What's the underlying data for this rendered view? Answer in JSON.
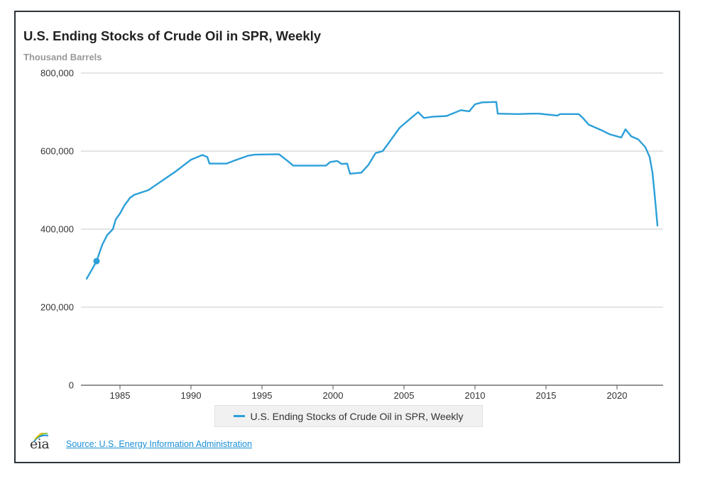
{
  "chart_data": {
    "type": "line",
    "title": "U.S. Ending Stocks of Crude Oil in SPR, Weekly",
    "subtitle": "Thousand Barrels",
    "xlabel": "",
    "ylabel": "Thousand Barrels",
    "xlim": [
      1982.25,
      2023.25
    ],
    "ylim": [
      0,
      800000
    ],
    "grid": true,
    "legend_position": "bottom-center",
    "x_ticks": [
      1985,
      1990,
      1995,
      2000,
      2005,
      2010,
      2015,
      2020
    ],
    "x_tick_labels": [
      "1985",
      "1990",
      "1995",
      "2000",
      "2005",
      "2010",
      "2015",
      "2020"
    ],
    "y_ticks": [
      0,
      200000,
      400000,
      600000,
      800000
    ],
    "y_tick_labels": [
      "0",
      "200,000",
      "400,000",
      "600,000",
      "800,000"
    ],
    "highlight_point": {
      "x": 1983.35,
      "y": 318000
    },
    "series": [
      {
        "name": "U.S. Ending Stocks of Crude Oil in SPR, Weekly",
        "color": "#2b9fd8",
        "x": [
          1982.65,
          1983.0,
          1983.35,
          1983.75,
          1984.1,
          1984.5,
          1984.7,
          1985.0,
          1985.3,
          1985.7,
          1986.0,
          1987.0,
          1988.0,
          1989.0,
          1990.0,
          1990.8,
          1991.15,
          1991.3,
          1992.5,
          1993.0,
          1994.0,
          1994.5,
          1996.2,
          1996.8,
          1997.2,
          1999.5,
          1999.8,
          2000.3,
          2000.6,
          2001.0,
          2001.2,
          2002.0,
          2002.5,
          2003.0,
          2003.5,
          2004.0,
          2004.7,
          2005.5,
          2006.0,
          2006.4,
          2007.0,
          2008.0,
          2009.0,
          2009.6,
          2010.0,
          2010.5,
          2011.5,
          2011.6,
          2013.0,
          2014.0,
          2014.5,
          2015.8,
          2016.0,
          2017.3,
          2017.6,
          2018.0,
          2018.5,
          2019.0,
          2019.5,
          2020.3,
          2020.6,
          2021.0,
          2021.5,
          2022.0,
          2022.3,
          2022.5,
          2022.7,
          2022.85
        ],
        "values": [
          273000,
          295000,
          318000,
          360000,
          385000,
          400000,
          425000,
          440000,
          460000,
          480000,
          488000,
          500000,
          525000,
          550000,
          578000,
          590000,
          585000,
          568000,
          568000,
          575000,
          588000,
          591000,
          592000,
          575000,
          563000,
          563000,
          572000,
          575000,
          567000,
          568000,
          542000,
          545000,
          565000,
          595000,
          600000,
          625000,
          660000,
          685000,
          700000,
          685000,
          688000,
          690000,
          705000,
          702000,
          720000,
          725000,
          726000,
          696000,
          695000,
          696000,
          696000,
          691000,
          695000,
          695000,
          685000,
          668000,
          660000,
          652000,
          643000,
          635000,
          656000,
          638000,
          630000,
          610000,
          585000,
          545000,
          470000,
          409000
        ]
      }
    ]
  },
  "legend": {
    "label": "U.S. Ending Stocks of Crude Oil in SPR, Weekly"
  },
  "footer": {
    "logo_text": "eia",
    "source_link": "Source: U.S. Energy Information Administration"
  }
}
